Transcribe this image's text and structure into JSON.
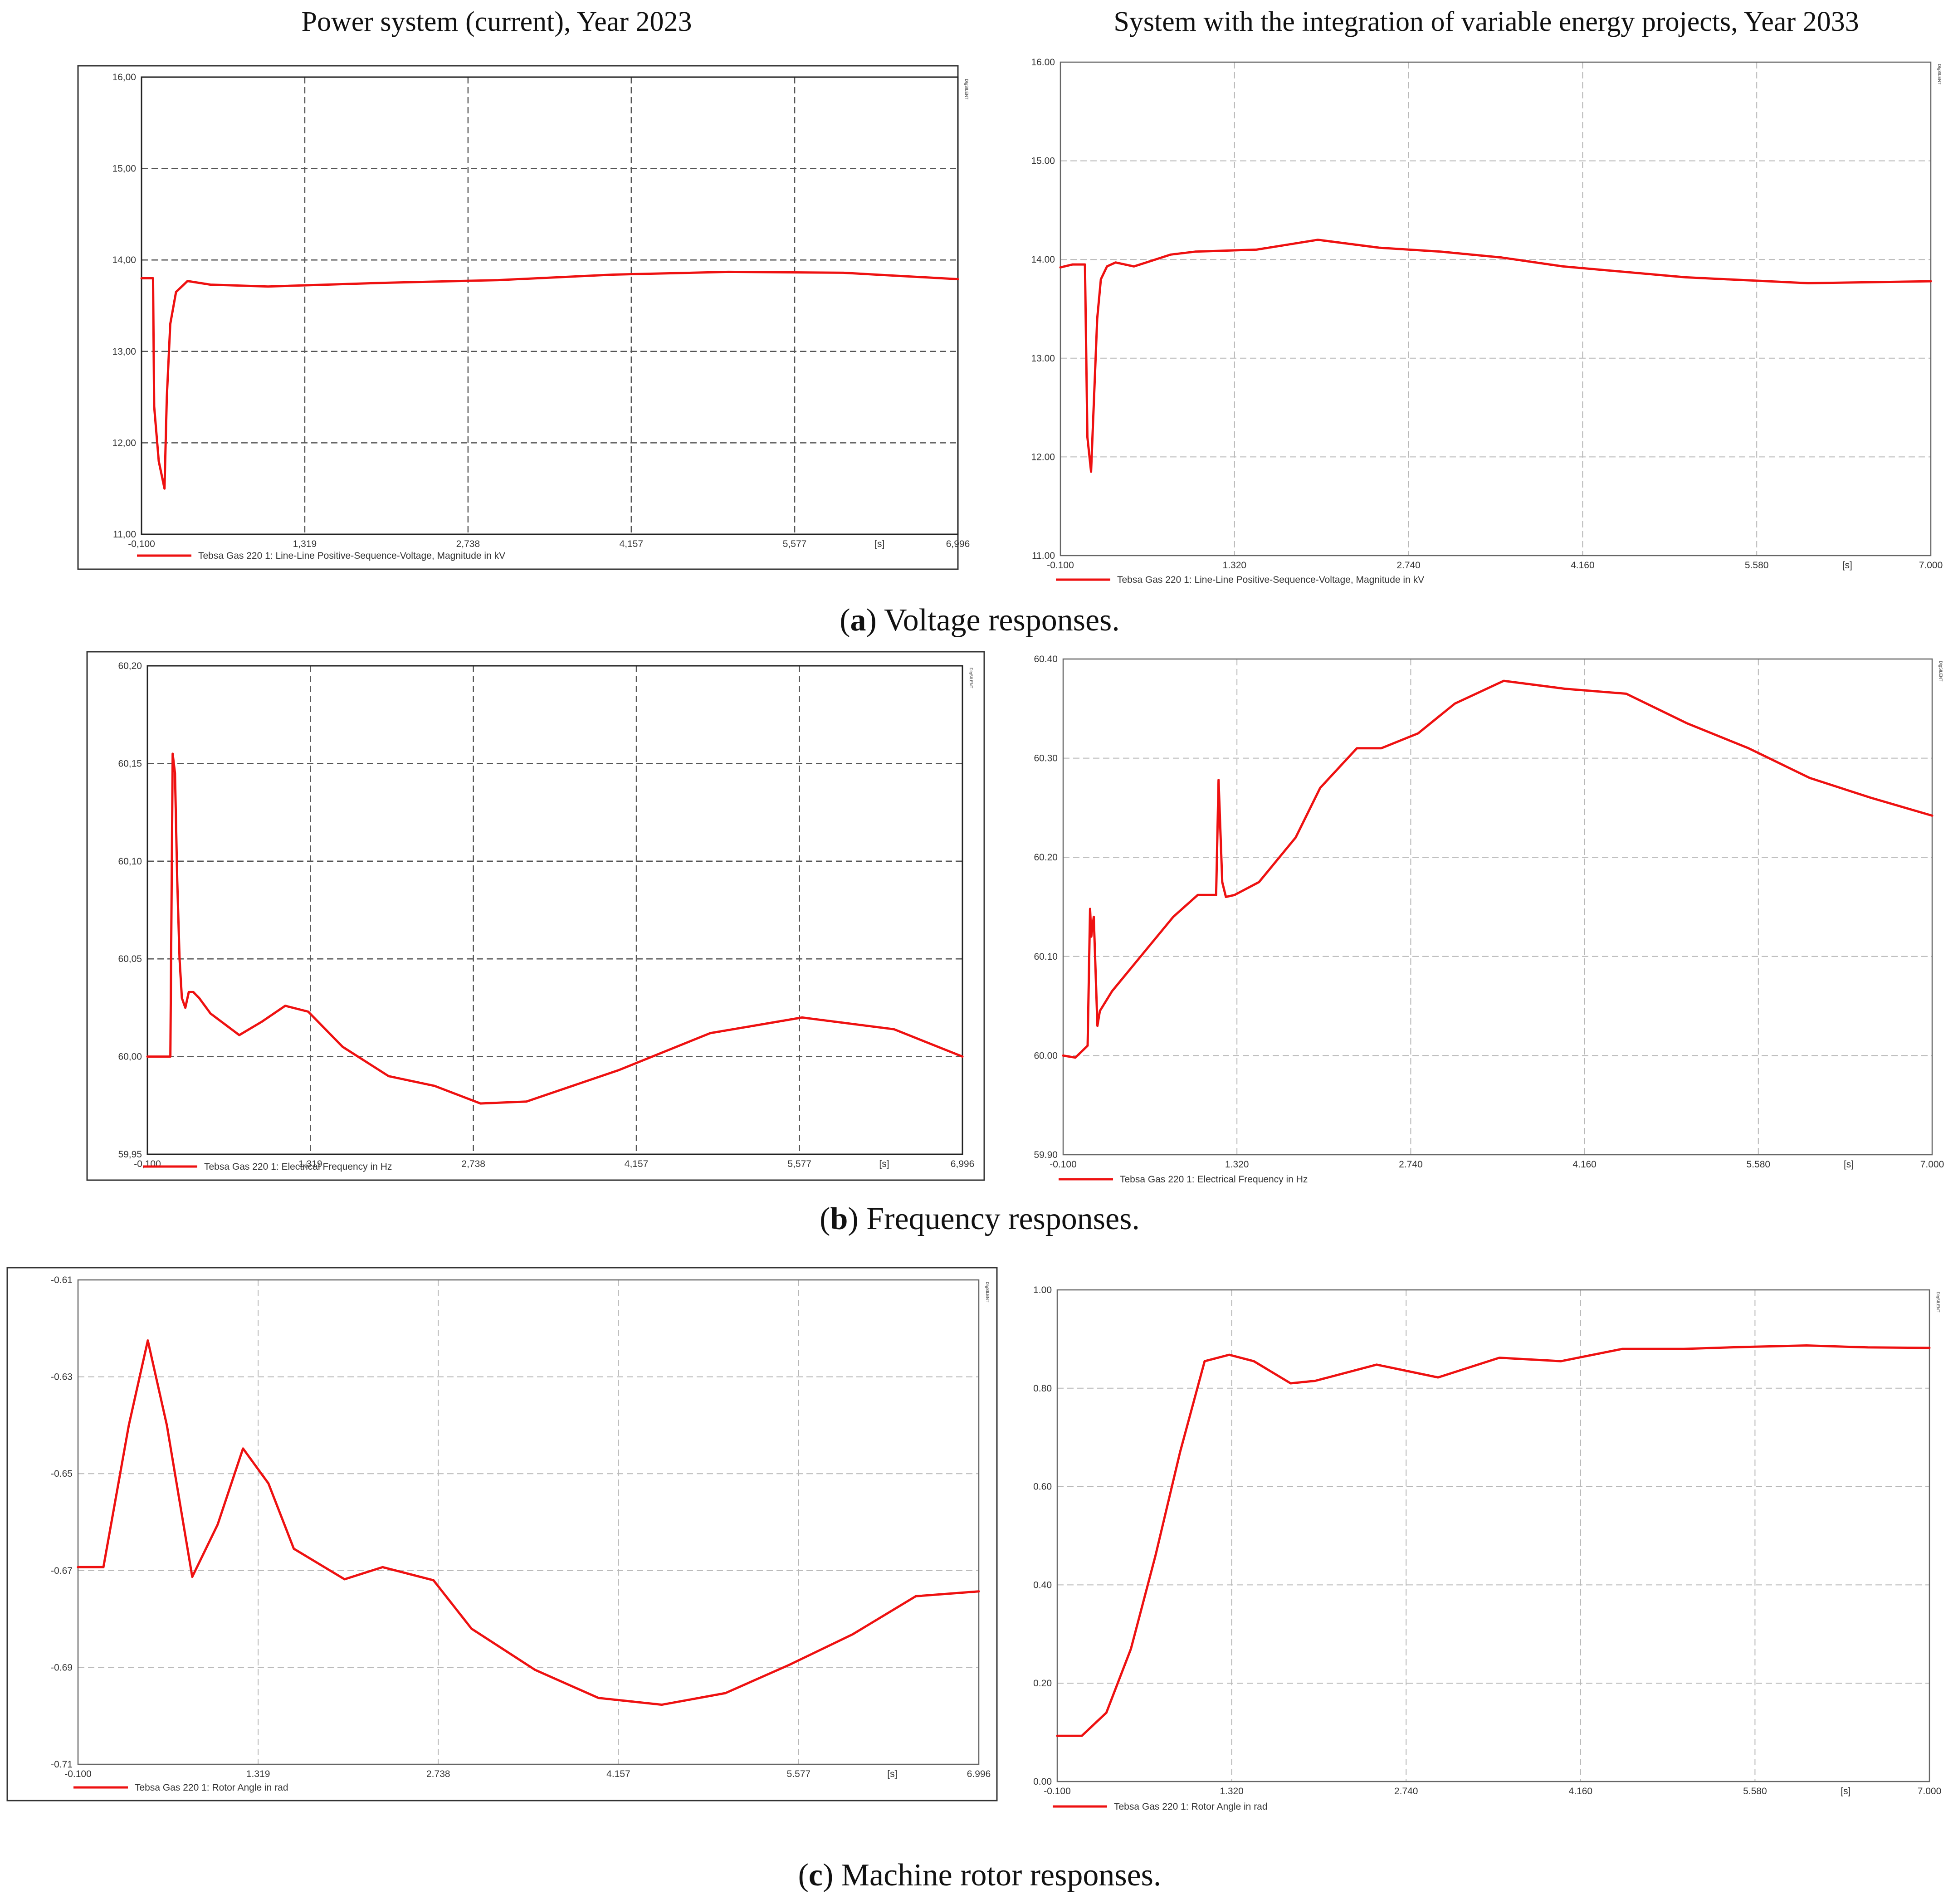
{
  "column_titles": {
    "left": "Power system (current), Year 2023",
    "right": "System with the integration of variable energy projects, Year 2033"
  },
  "captions": [
    {
      "letter": "a",
      "text": "Voltage responses."
    },
    {
      "letter": "b",
      "text": "Frequency responses."
    },
    {
      "letter": "c",
      "text": "Machine rotor responses."
    }
  ],
  "brand_logo": "DIgSILENT",
  "colors": {
    "series": "#ee1111",
    "grid": "#555555",
    "grid_light": "#b8b8b8",
    "frame": "#333333"
  },
  "chart_data": [
    {
      "type": "line",
      "title": "",
      "xlim": [
        -0.1,
        6.996
      ],
      "ylim": [
        11,
        16
      ],
      "xticks": [
        -0.1,
        1.319,
        2.738,
        4.157,
        5.577,
        6.996
      ],
      "xtick_labels": [
        "-0,100",
        "1,319",
        "2,738",
        "4,157",
        "5,577",
        "6,996"
      ],
      "x_unit": "[s]",
      "yticks": [
        11,
        12,
        13,
        14,
        15,
        16
      ],
      "ytick_labels": [
        "11,00",
        "12,00",
        "13,00",
        "14,00",
        "15,00",
        "16,00"
      ],
      "legend": "Tebsa Gas 220 1: Line-Line Positive-Sequence-Voltage, Magnitude in kV",
      "grid": "dashed-dark",
      "series": [
        {
          "x": [
            -0.1,
            0.0,
            0.01,
            0.05,
            0.1,
            0.12,
            0.15,
            0.2,
            0.3,
            0.5,
            1.0,
            2.0,
            3.0,
            4.0,
            5.0,
            6.0,
            6.996
          ],
          "y": [
            13.8,
            13.8,
            12.4,
            11.8,
            11.5,
            12.5,
            13.3,
            13.65,
            13.77,
            13.73,
            13.71,
            13.75,
            13.78,
            13.84,
            13.87,
            13.86,
            13.79
          ]
        }
      ]
    },
    {
      "type": "line",
      "title": "",
      "xlim": [
        -0.1,
        7.0
      ],
      "ylim": [
        11,
        16
      ],
      "xticks": [
        -0.1,
        1.32,
        2.74,
        4.16,
        5.58,
        7.0
      ],
      "xtick_labels": [
        "-0.100",
        "1.320",
        "2.740",
        "4.160",
        "5.580",
        "7.000"
      ],
      "x_unit": "[s]",
      "yticks": [
        11,
        12,
        13,
        14,
        15,
        16
      ],
      "ytick_labels": [
        "11.00",
        "12.00",
        "13.00",
        "14.00",
        "15.00",
        "16.00"
      ],
      "legend": "Tebsa Gas 220 1: Line-Line Positive-Sequence-Voltage, Magnitude in kV",
      "grid": "dashed-light",
      "series": [
        {
          "x": [
            -0.1,
            0.0,
            0.1,
            0.12,
            0.15,
            0.2,
            0.23,
            0.28,
            0.35,
            0.5,
            0.6,
            0.8,
            1.0,
            1.5,
            2.0,
            2.5,
            3.0,
            3.5,
            4.0,
            5.0,
            6.0,
            7.0
          ],
          "y": [
            13.92,
            13.95,
            13.95,
            12.2,
            11.85,
            13.4,
            13.8,
            13.93,
            13.97,
            13.93,
            13.97,
            14.05,
            14.08,
            14.1,
            14.2,
            14.12,
            14.08,
            14.02,
            13.93,
            13.82,
            13.76,
            13.78
          ]
        }
      ]
    },
    {
      "type": "line",
      "title": "",
      "xlim": [
        -0.1,
        6.996
      ],
      "ylim": [
        59.95,
        60.2
      ],
      "xticks": [
        -0.1,
        1.319,
        2.738,
        4.157,
        5.577,
        6.996
      ],
      "xtick_labels": [
        "-0,100",
        "1,319",
        "2,738",
        "4,157",
        "5,577",
        "6,996"
      ],
      "x_unit": "[s]",
      "yticks": [
        59.95,
        60.0,
        60.05,
        60.1,
        60.15,
        60.2
      ],
      "ytick_labels": [
        "59,95",
        "60,00",
        "60,05",
        "60,10",
        "60,15",
        "60,20"
      ],
      "legend": "Tebsa Gas 220 1: Electrical Frequency in Hz",
      "grid": "dashed-dark",
      "series": [
        {
          "x": [
            -0.1,
            0.1,
            0.12,
            0.14,
            0.16,
            0.18,
            0.2,
            0.23,
            0.26,
            0.3,
            0.35,
            0.45,
            0.7,
            0.9,
            1.1,
            1.3,
            1.6,
            2.0,
            2.4,
            2.8,
            3.2,
            4.0,
            4.8,
            5.6,
            6.4,
            6.996
          ],
          "y": [
            60.0,
            60.0,
            60.155,
            60.145,
            60.09,
            60.05,
            60.03,
            60.025,
            60.033,
            60.033,
            60.03,
            60.022,
            60.011,
            60.018,
            60.026,
            60.023,
            60.005,
            59.99,
            59.985,
            59.976,
            59.977,
            59.993,
            60.012,
            60.02,
            60.014,
            60.0
          ]
        }
      ]
    },
    {
      "type": "line",
      "title": "",
      "xlim": [
        -0.1,
        7.0
      ],
      "ylim": [
        59.9,
        60.4
      ],
      "xticks": [
        -0.1,
        1.32,
        2.74,
        4.16,
        5.58,
        7.0
      ],
      "xtick_labels": [
        "-0.100",
        "1.320",
        "2.740",
        "4.160",
        "5.580",
        "7.000"
      ],
      "x_unit": "[s]",
      "yticks": [
        59.9,
        60.0,
        60.1,
        60.2,
        60.3,
        60.4
      ],
      "ytick_labels": [
        "59.90",
        "60.00",
        "60.10",
        "60.20",
        "60.30",
        "60.40"
      ],
      "legend": "Tebsa Gas 220 1: Electrical Frequency in Hz",
      "grid": "dashed-light",
      "series": [
        {
          "x": [
            -0.1,
            0.0,
            0.1,
            0.12,
            0.13,
            0.15,
            0.18,
            0.2,
            0.3,
            0.5,
            0.8,
            1.0,
            1.15,
            1.17,
            1.2,
            1.23,
            1.3,
            1.5,
            1.8,
            2.0,
            2.3,
            2.5,
            2.8,
            3.1,
            3.5,
            4.0,
            4.5,
            5.0,
            5.5,
            6.0,
            6.5,
            7.0
          ],
          "y": [
            60.0,
            59.998,
            60.01,
            60.148,
            60.12,
            60.14,
            60.03,
            60.045,
            60.065,
            60.095,
            60.14,
            60.162,
            60.162,
            60.278,
            60.175,
            60.16,
            60.162,
            60.175,
            60.22,
            60.27,
            60.31,
            60.31,
            60.325,
            60.355,
            60.378,
            60.37,
            60.365,
            60.335,
            60.31,
            60.28,
            60.26,
            60.242
          ]
        }
      ]
    },
    {
      "type": "line",
      "title": "",
      "xlim": [
        -0.1,
        6.996
      ],
      "ylim": [
        -0.71,
        -0.61
      ],
      "xticks": [
        -0.1,
        1.319,
        2.738,
        4.157,
        5.577,
        6.996
      ],
      "xtick_labels": [
        "-0.100",
        "1.319",
        "2.738",
        "4.157",
        "5.577",
        "6.996"
      ],
      "x_unit": "[s]",
      "yticks": [
        -0.71,
        -0.69,
        -0.67,
        -0.65,
        -0.63,
        -0.61
      ],
      "ytick_labels": [
        "-0.71",
        "-0.69",
        "-0.67",
        "-0.65",
        "-0.63",
        "-0.61"
      ],
      "legend": "Tebsa Gas 220 1: Rotor Angle in rad",
      "grid": "dashed-light",
      "series": [
        {
          "x": [
            -0.1,
            0.1,
            0.3,
            0.45,
            0.6,
            0.8,
            1.0,
            1.2,
            1.4,
            1.6,
            2.0,
            2.3,
            2.7,
            3.0,
            3.5,
            4.0,
            4.5,
            5.0,
            5.5,
            6.0,
            6.5,
            6.996
          ],
          "y": [
            -0.6693,
            -0.6693,
            -0.64,
            -0.6225,
            -0.64,
            -0.6713,
            -0.6605,
            -0.6448,
            -0.652,
            -0.6655,
            -0.6718,
            -0.6693,
            -0.672,
            -0.682,
            -0.6905,
            -0.6963,
            -0.6977,
            -0.6953,
            -0.6895,
            -0.6832,
            -0.6753,
            -0.6743
          ]
        }
      ]
    },
    {
      "type": "line",
      "title": "",
      "xlim": [
        -0.1,
        7.0
      ],
      "ylim": [
        0.0,
        1.0
      ],
      "xticks": [
        -0.1,
        1.32,
        2.74,
        4.16,
        5.58,
        7.0
      ],
      "xtick_labels": [
        "-0.100",
        "1.320",
        "2.740",
        "4.160",
        "5.580",
        "7.000"
      ],
      "x_unit": "[s]",
      "yticks": [
        0.0,
        0.2,
        0.4,
        0.6,
        0.8,
        1.0
      ],
      "ytick_labels": [
        "0.00",
        "0.20",
        "0.40",
        "0.60",
        "0.80",
        "1.00"
      ],
      "legend": "Tebsa Gas 220 1: Rotor Angle in rad",
      "grid": "dashed-light",
      "series": [
        {
          "x": [
            -0.1,
            0.1,
            0.3,
            0.5,
            0.7,
            0.9,
            1.1,
            1.3,
            1.5,
            1.8,
            2.0,
            2.5,
            3.0,
            3.5,
            4.0,
            4.5,
            5.0,
            5.5,
            6.0,
            6.5,
            7.0
          ],
          "y": [
            0.093,
            0.093,
            0.14,
            0.27,
            0.46,
            0.67,
            0.855,
            0.868,
            0.855,
            0.81,
            0.815,
            0.848,
            0.822,
            0.862,
            0.855,
            0.88,
            0.88,
            0.884,
            0.887,
            0.883,
            0.882
          ]
        }
      ]
    }
  ]
}
